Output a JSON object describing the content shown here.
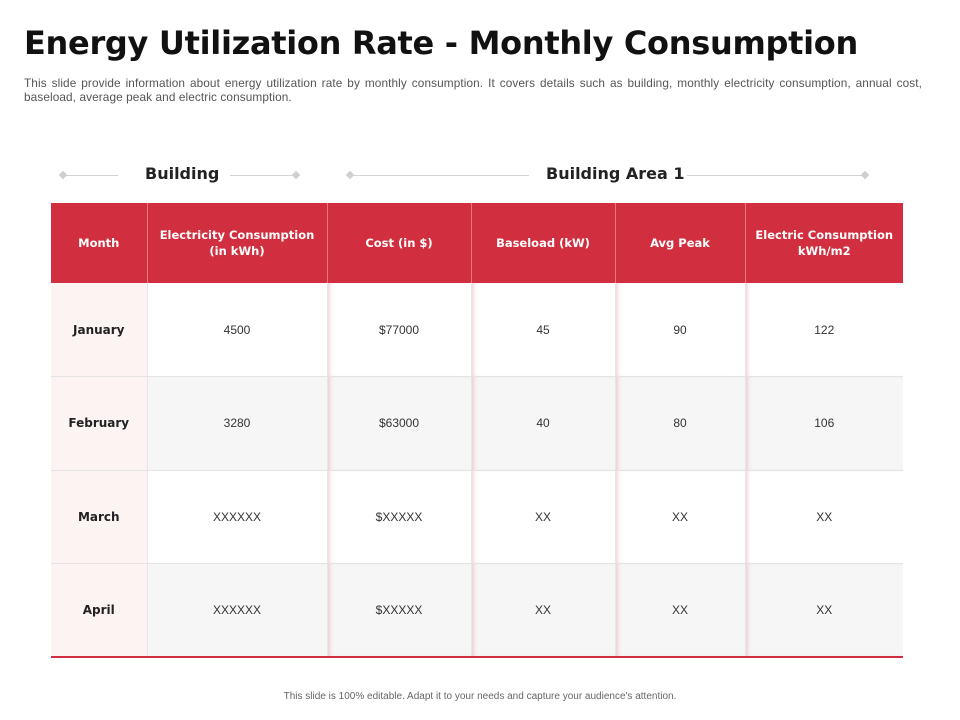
{
  "title": "Energy Utilization Rate - Monthly Consumption",
  "subtitle": "This slide provide information about energy utilization  rate by monthly consumption.  It covers details such as building, monthly electricity  consumption, annual cost, baseload, average peak and electric  consumption.",
  "groups": {
    "building": "Building",
    "area": "Building Area 1"
  },
  "table": {
    "headers": {
      "month": "Month",
      "electricity": "Electricity Consumption  (in kWh)",
      "cost": "Cost (in $)",
      "baseload": "Baseload (kW)",
      "avg_peak": "Avg Peak",
      "electric": "Electric Consumption  kWh/m2"
    },
    "rows": [
      {
        "month": "January",
        "electricity": "4500",
        "cost": "$77000",
        "baseload": "45",
        "avg_peak": "90",
        "electric": "122"
      },
      {
        "month": "February",
        "electricity": "3280",
        "cost": "$63000",
        "baseload": "40",
        "avg_peak": "80",
        "electric": "106"
      },
      {
        "month": "March",
        "electricity": "XXXXXX",
        "cost": "$XXXXX",
        "baseload": "XX",
        "avg_peak": "XX",
        "electric": "XX"
      },
      {
        "month": "April",
        "electricity": "XXXXXX",
        "cost": "$XXXXX",
        "baseload": "XX",
        "avg_peak": "XX",
        "electric": "XX"
      }
    ]
  },
  "footer": "This slide is 100% editable.  Adapt it to your needs and capture your audience's attention.",
  "colors": {
    "accent": "#d12f3f",
    "month_cell": "#fcf3f3",
    "row_alt": "#f6f6f6"
  }
}
